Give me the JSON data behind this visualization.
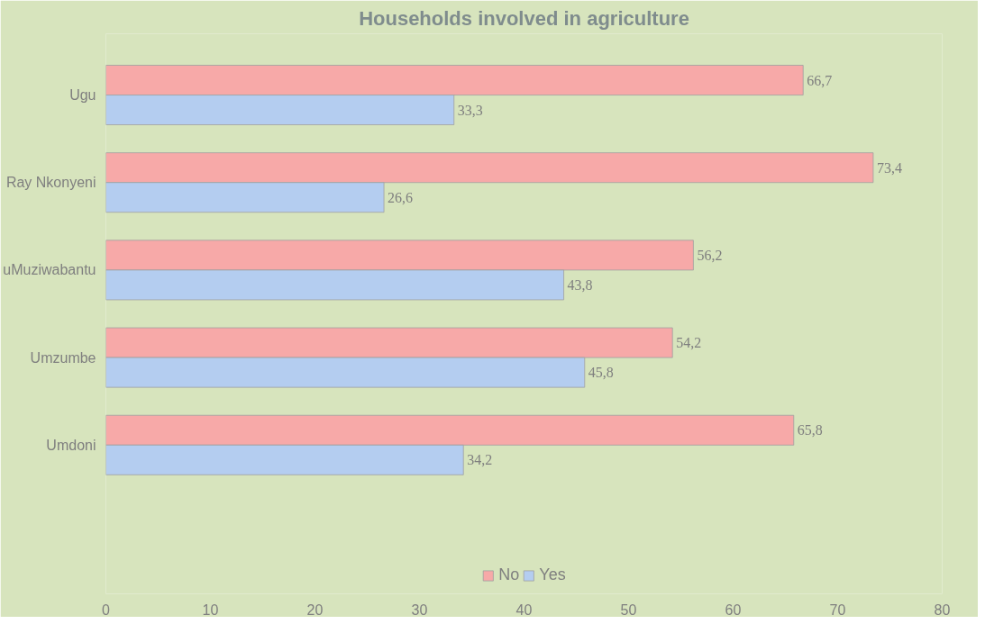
{
  "chart_data": {
    "type": "bar",
    "orientation": "horizontal",
    "title": "Households involved in agriculture",
    "categories": [
      "Ugu",
      "Ray Nkonyeni",
      "uMuziwabantu",
      "Umzumbe",
      "Umdoni",
      null
    ],
    "series": [
      {
        "name": "No",
        "color": "#f7a9a8",
        "values": [
          66.7,
          73.4,
          56.2,
          54.2,
          65.8,
          null
        ],
        "value_labels": [
          "66,7",
          "73,4",
          "56,2",
          "54,2",
          "65,8",
          null
        ]
      },
      {
        "name": "Yes",
        "color": "#b4cdf0",
        "values": [
          33.3,
          26.6,
          43.8,
          45.8,
          34.2,
          null
        ],
        "value_labels": [
          "33,3",
          "26,6",
          "43,8",
          "45,8",
          "34,2",
          null
        ]
      }
    ],
    "xlim": [
      0,
      80
    ],
    "xticks": [
      0,
      10,
      20,
      30,
      40,
      50,
      60,
      70,
      80
    ],
    "grid": false,
    "legend": "bottom"
  }
}
